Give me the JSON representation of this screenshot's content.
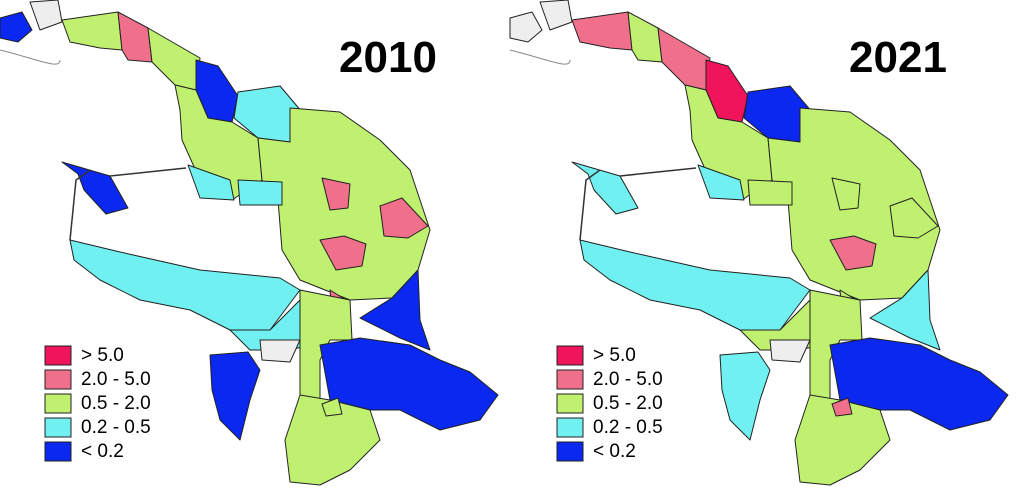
{
  "maps": [
    {
      "title": "2010",
      "legend": [
        {
          "label": "> 5.0",
          "color": "#f0145a"
        },
        {
          "label": "2.0 - 5.0",
          "color": "#f0708c"
        },
        {
          "label": "0.5 - 2.0",
          "color": "#c0f070"
        },
        {
          "label": "0.2 - 0.5",
          "color": "#70f0f0"
        },
        {
          "label": "< 0.2",
          "color": "#0a28f0"
        }
      ]
    },
    {
      "title": "2021",
      "legend": [
        {
          "label": "> 5.0",
          "color": "#f0145a"
        },
        {
          "label": "2.0 - 5.0",
          "color": "#f0708c"
        },
        {
          "label": "0.5 - 2.0",
          "color": "#c0f070"
        },
        {
          "label": "0.2 - 0.5",
          "color": "#70f0f0"
        },
        {
          "label": "< 0.2",
          "color": "#0a28f0"
        }
      ]
    }
  ]
}
